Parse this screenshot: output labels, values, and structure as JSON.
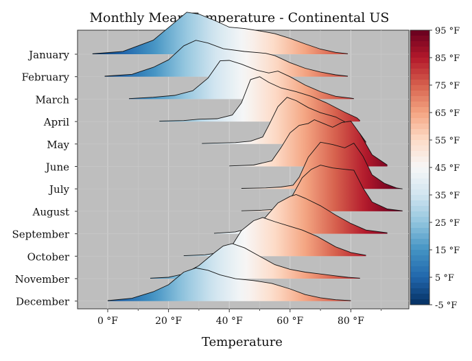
{
  "chart_data": {
    "type": "ridgeline",
    "title": "Monthly Mean Temperature - Continental US",
    "xlabel": "Temperature",
    "ylabel": "",
    "x_ticks": [
      0,
      20,
      40,
      60,
      80
    ],
    "x_tick_labels": [
      "0 °F",
      "20 °F",
      "40 °F",
      "60 °F",
      "80 °F"
    ],
    "xlim": [
      -10,
      100
    ],
    "grid": true,
    "colorbar": {
      "min": -5,
      "max": 95,
      "tick_values": [
        95,
        85,
        75,
        65,
        55,
        45,
        35,
        25,
        15,
        5,
        -5
      ],
      "tick_labels": [
        "95 °F",
        "85 °F",
        "75 °F",
        "65 °F",
        "55 °F",
        "45 °F",
        "35 °F",
        "25 °F",
        "15 °F",
        "5 °F",
        "-5 °F"
      ],
      "colors": [
        "#053061",
        "#2166ac",
        "#4393c3",
        "#92c5de",
        "#d1e5f0",
        "#f7f7f7",
        "#fddbc7",
        "#f4a582",
        "#d6604d",
        "#b2182b",
        "#67001f"
      ]
    },
    "categories": [
      "January",
      "February",
      "March",
      "April",
      "May",
      "June",
      "July",
      "August",
      "September",
      "October",
      "November",
      "December"
    ],
    "series": [
      {
        "name": "January",
        "points": [
          [
            -5,
            0.01
          ],
          [
            5,
            0.06
          ],
          [
            15,
            0.3
          ],
          [
            22,
            0.68
          ],
          [
            26,
            0.9
          ],
          [
            30,
            0.86
          ],
          [
            35,
            0.73
          ],
          [
            40,
            0.58
          ],
          [
            45,
            0.55
          ],
          [
            50,
            0.5
          ],
          [
            55,
            0.44
          ],
          [
            60,
            0.34
          ],
          [
            65,
            0.22
          ],
          [
            70,
            0.11
          ],
          [
            75,
            0.04
          ],
          [
            79,
            0.01
          ]
        ]
      },
      {
        "name": "February",
        "points": [
          [
            -1,
            0.01
          ],
          [
            8,
            0.05
          ],
          [
            15,
            0.2
          ],
          [
            20,
            0.36
          ],
          [
            25,
            0.66
          ],
          [
            29,
            0.78
          ],
          [
            33,
            0.72
          ],
          [
            38,
            0.6
          ],
          [
            45,
            0.54
          ],
          [
            52,
            0.5
          ],
          [
            55,
            0.45
          ],
          [
            60,
            0.3
          ],
          [
            65,
            0.18
          ],
          [
            70,
            0.1
          ],
          [
            75,
            0.04
          ],
          [
            79,
            0.01
          ]
        ]
      },
      {
        "name": "March",
        "points": [
          [
            7,
            0.01
          ],
          [
            15,
            0.04
          ],
          [
            22,
            0.08
          ],
          [
            28,
            0.18
          ],
          [
            33,
            0.45
          ],
          [
            37,
            0.82
          ],
          [
            40,
            0.83
          ],
          [
            44,
            0.75
          ],
          [
            49,
            0.62
          ],
          [
            53,
            0.56
          ],
          [
            56,
            0.6
          ],
          [
            60,
            0.48
          ],
          [
            65,
            0.3
          ],
          [
            70,
            0.16
          ],
          [
            75,
            0.06
          ],
          [
            80,
            0.02
          ],
          [
            81,
            0.01
          ]
        ]
      },
      {
        "name": "April",
        "points": [
          [
            17,
            0.01
          ],
          [
            25,
            0.02
          ],
          [
            30,
            0.05
          ],
          [
            36,
            0.06
          ],
          [
            41,
            0.14
          ],
          [
            44,
            0.4
          ],
          [
            47,
            0.9
          ],
          [
            50,
            0.96
          ],
          [
            53,
            0.84
          ],
          [
            57,
            0.72
          ],
          [
            62,
            0.64
          ],
          [
            67,
            0.54
          ],
          [
            72,
            0.4
          ],
          [
            78,
            0.2
          ],
          [
            82,
            0.08
          ],
          [
            83,
            0.02
          ]
        ]
      },
      {
        "name": "May",
        "points": [
          [
            31,
            0.01
          ],
          [
            36,
            0.02
          ],
          [
            42,
            0.03
          ],
          [
            47,
            0.06
          ],
          [
            51,
            0.15
          ],
          [
            53,
            0.4
          ],
          [
            56,
            0.8
          ],
          [
            59,
            1.0
          ],
          [
            62,
            0.93
          ],
          [
            66,
            0.78
          ],
          [
            70,
            0.67
          ],
          [
            75,
            0.58
          ],
          [
            79,
            0.44
          ],
          [
            83,
            0.22
          ],
          [
            85,
            0.04
          ]
        ]
      },
      {
        "name": "June",
        "points": [
          [
            40,
            0.01
          ],
          [
            48,
            0.03
          ],
          [
            54,
            0.12
          ],
          [
            57,
            0.4
          ],
          [
            60,
            0.72
          ],
          [
            63,
            0.88
          ],
          [
            66,
            0.92
          ],
          [
            68,
            1.0
          ],
          [
            71,
            0.92
          ],
          [
            74,
            0.84
          ],
          [
            77,
            0.94
          ],
          [
            80,
            0.97
          ],
          [
            83,
            0.7
          ],
          [
            87,
            0.25
          ],
          [
            92,
            0.03
          ]
        ]
      },
      {
        "name": "July",
        "points": [
          [
            44,
            0.01
          ],
          [
            52,
            0.02
          ],
          [
            57,
            0.04
          ],
          [
            61,
            0.08
          ],
          [
            63,
            0.25
          ],
          [
            66,
            0.68
          ],
          [
            70,
            1.0
          ],
          [
            74,
            0.95
          ],
          [
            78,
            0.88
          ],
          [
            81,
            0.98
          ],
          [
            84,
            0.7
          ],
          [
            87,
            0.3
          ],
          [
            91,
            0.12
          ],
          [
            95,
            0.02
          ],
          [
            97,
            0.0
          ]
        ]
      },
      {
        "name": "August",
        "points": [
          [
            44,
            0.01
          ],
          [
            50,
            0.02
          ],
          [
            55,
            0.04
          ],
          [
            58,
            0.12
          ],
          [
            61,
            0.36
          ],
          [
            64,
            0.72
          ],
          [
            67,
            0.9
          ],
          [
            70,
            0.99
          ],
          [
            74,
            0.93
          ],
          [
            78,
            0.9
          ],
          [
            81,
            0.88
          ],
          [
            84,
            0.5
          ],
          [
            87,
            0.2
          ],
          [
            92,
            0.05
          ],
          [
            97,
            0.01
          ]
        ]
      },
      {
        "name": "September",
        "points": [
          [
            35,
            0.01
          ],
          [
            42,
            0.04
          ],
          [
            48,
            0.14
          ],
          [
            52,
            0.36
          ],
          [
            56,
            0.66
          ],
          [
            60,
            0.8
          ],
          [
            62,
            0.84
          ],
          [
            65,
            0.76
          ],
          [
            70,
            0.6
          ],
          [
            75,
            0.4
          ],
          [
            80,
            0.22
          ],
          [
            85,
            0.08
          ],
          [
            92,
            0.02
          ]
        ]
      },
      {
        "name": "October",
        "points": [
          [
            25,
            0.01
          ],
          [
            32,
            0.03
          ],
          [
            37,
            0.08
          ],
          [
            41,
            0.24
          ],
          [
            44,
            0.55
          ],
          [
            48,
            0.76
          ],
          [
            51,
            0.83
          ],
          [
            55,
            0.74
          ],
          [
            60,
            0.64
          ],
          [
            64,
            0.56
          ],
          [
            69,
            0.42
          ],
          [
            75,
            0.2
          ],
          [
            80,
            0.08
          ],
          [
            85,
            0.02
          ]
        ]
      },
      {
        "name": "November",
        "points": [
          [
            14,
            0.01
          ],
          [
            20,
            0.03
          ],
          [
            25,
            0.1
          ],
          [
            30,
            0.28
          ],
          [
            35,
            0.55
          ],
          [
            38,
            0.7
          ],
          [
            41,
            0.75
          ],
          [
            45,
            0.66
          ],
          [
            50,
            0.48
          ],
          [
            55,
            0.3
          ],
          [
            60,
            0.2
          ],
          [
            65,
            0.14
          ],
          [
            70,
            0.1
          ],
          [
            75,
            0.06
          ],
          [
            79,
            0.03
          ],
          [
            83,
            0.01
          ]
        ]
      },
      {
        "name": "December",
        "points": [
          [
            0,
            0.01
          ],
          [
            8,
            0.06
          ],
          [
            15,
            0.2
          ],
          [
            20,
            0.35
          ],
          [
            25,
            0.62
          ],
          [
            29,
            0.71
          ],
          [
            33,
            0.66
          ],
          [
            37,
            0.56
          ],
          [
            42,
            0.48
          ],
          [
            48,
            0.44
          ],
          [
            54,
            0.38
          ],
          [
            60,
            0.26
          ],
          [
            65,
            0.14
          ],
          [
            70,
            0.07
          ],
          [
            75,
            0.03
          ],
          [
            80,
            0.01
          ]
        ]
      }
    ]
  }
}
